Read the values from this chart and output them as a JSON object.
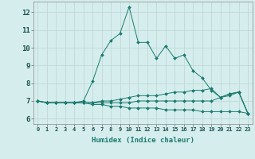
{
  "xlabel": "Humidex (Indice chaleur)",
  "background_color": "#d5eeed",
  "grid_color": "#c0d8d8",
  "line_color": "#1a7a6e",
  "x_ticks": [
    0,
    1,
    2,
    3,
    4,
    5,
    6,
    7,
    8,
    9,
    10,
    11,
    12,
    13,
    14,
    15,
    16,
    17,
    18,
    19,
    20,
    21,
    22,
    23
  ],
  "y_ticks": [
    6,
    7,
    8,
    9,
    10,
    11,
    12
  ],
  "ylim": [
    5.7,
    12.6
  ],
  "xlim": [
    -0.5,
    23.5
  ],
  "lines": [
    {
      "x": [
        0,
        1,
        2,
        3,
        4,
        5,
        6,
        7,
        8,
        9,
        10,
        11,
        12,
        13,
        14,
        15,
        16,
        17,
        18,
        19,
        20,
        21,
        22,
        23
      ],
      "y": [
        7.0,
        6.9,
        6.9,
        6.9,
        6.9,
        7.0,
        8.1,
        9.6,
        10.4,
        10.8,
        12.3,
        10.3,
        10.3,
        9.4,
        10.1,
        9.4,
        9.6,
        8.7,
        8.3,
        7.6,
        7.2,
        7.4,
        7.5,
        6.3
      ]
    },
    {
      "x": [
        0,
        1,
        2,
        3,
        4,
        5,
        6,
        7,
        8,
        9,
        10,
        11,
        12,
        13,
        14,
        15,
        16,
        17,
        18,
        19,
        20,
        21,
        22,
        23
      ],
      "y": [
        7.0,
        6.9,
        6.9,
        6.9,
        6.9,
        6.9,
        6.9,
        7.0,
        7.0,
        7.1,
        7.2,
        7.3,
        7.3,
        7.3,
        7.4,
        7.5,
        7.5,
        7.6,
        7.6,
        7.7,
        7.2,
        7.4,
        7.5,
        6.3
      ]
    },
    {
      "x": [
        0,
        1,
        2,
        3,
        4,
        5,
        6,
        7,
        8,
        9,
        10,
        11,
        12,
        13,
        14,
        15,
        16,
        17,
        18,
        19,
        20,
        21,
        22,
        23
      ],
      "y": [
        7.0,
        6.9,
        6.9,
        6.9,
        6.9,
        6.9,
        6.8,
        6.8,
        6.7,
        6.7,
        6.6,
        6.6,
        6.6,
        6.6,
        6.5,
        6.5,
        6.5,
        6.5,
        6.4,
        6.4,
        6.4,
        6.4,
        6.4,
        6.3
      ]
    },
    {
      "x": [
        0,
        1,
        2,
        3,
        4,
        5,
        6,
        7,
        8,
        9,
        10,
        11,
        12,
        13,
        14,
        15,
        16,
        17,
        18,
        19,
        20,
        21,
        22,
        23
      ],
      "y": [
        7.0,
        6.9,
        6.9,
        6.9,
        6.9,
        6.9,
        6.9,
        6.9,
        6.9,
        6.9,
        6.9,
        7.0,
        7.0,
        7.0,
        7.0,
        7.0,
        7.0,
        7.0,
        7.0,
        7.0,
        7.2,
        7.3,
        7.5,
        6.3
      ]
    }
  ]
}
